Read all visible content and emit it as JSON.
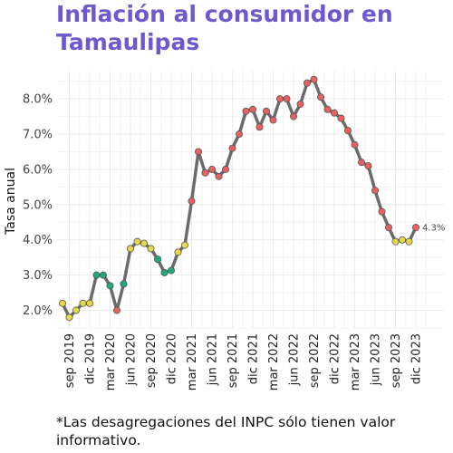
{
  "chart_data": {
    "type": "line",
    "title": "Inflación al consumidor en Tamaulipas",
    "xlabel": "",
    "ylabel": "Tasa anual",
    "ylim": [
      1.5,
      8.8
    ],
    "yticks": [
      2,
      3,
      4,
      5,
      6,
      7,
      8
    ],
    "ytick_labels": [
      "2.0%",
      "3.0%",
      "4.0%",
      "5.0%",
      "6.0%",
      "7.0%",
      "8.0%"
    ],
    "xtick_labels": [
      "sep 2019",
      "dic 2019",
      "mar 2020",
      "jun 2020",
      "sep 2020",
      "dic 2020",
      "mar 2021",
      "jun 2021",
      "sep 2021",
      "dic 2021",
      "mar 2022",
      "jun 2022",
      "sep 2022",
      "dic 2022",
      "mar 2023",
      "jun 2023",
      "sep 2023",
      "dic 2023"
    ],
    "x": [
      "ago 2019",
      "sep 2019",
      "oct 2019",
      "nov 2019",
      "dic 2019",
      "ene 2020",
      "feb 2020",
      "mar 2020",
      "abr 2020",
      "may 2020",
      "jun 2020",
      "jul 2020",
      "ago 2020",
      "sep 2020",
      "oct 2020",
      "nov 2020",
      "dic 2020",
      "ene 2021",
      "feb 2021",
      "mar 2021",
      "abr 2021",
      "may 2021",
      "jun 2021",
      "jul 2021",
      "ago 2021",
      "sep 2021",
      "oct 2021",
      "nov 2021",
      "dic 2021",
      "ene 2022",
      "feb 2022",
      "mar 2022",
      "abr 2022",
      "may 2022",
      "jun 2022",
      "jul 2022",
      "ago 2022",
      "sep 2022",
      "oct 2022",
      "nov 2022",
      "dic 2022",
      "ene 2023",
      "feb 2023",
      "mar 2023",
      "abr 2023",
      "may 2023",
      "jun 2023",
      "jul 2023",
      "ago 2023",
      "sep 2023",
      "oct 2023",
      "nov 2023",
      "dic 2023"
    ],
    "values": [
      2.2,
      1.8,
      2.0,
      2.2,
      2.2,
      3.0,
      3.0,
      2.7,
      2.0,
      2.75,
      3.75,
      3.95,
      3.9,
      3.75,
      3.45,
      3.07,
      3.13,
      3.65,
      3.85,
      5.1,
      6.5,
      5.9,
      6.0,
      5.8,
      6.0,
      6.6,
      7.0,
      7.65,
      7.7,
      7.2,
      7.65,
      7.4,
      8.0,
      8.0,
      7.5,
      7.85,
      8.45,
      8.55,
      8.05,
      7.7,
      7.6,
      7.45,
      7.1,
      6.7,
      6.2,
      6.1,
      5.4,
      4.8,
      4.35,
      3.95,
      4.0,
      3.95,
      4.35
    ],
    "point_categories": [
      "y",
      "y",
      "y",
      "y",
      "y",
      "g",
      "g",
      "g",
      "r",
      "g",
      "y",
      "y",
      "y",
      "y",
      "g",
      "g",
      "g",
      "y",
      "y",
      "r",
      "r",
      "r",
      "r",
      "r",
      "r",
      "r",
      "r",
      "r",
      "r",
      "r",
      "r",
      "r",
      "r",
      "r",
      "r",
      "r",
      "r",
      "r",
      "r",
      "r",
      "r",
      "r",
      "r",
      "r",
      "r",
      "r",
      "r",
      "r",
      "r",
      "y",
      "y",
      "y",
      "r"
    ],
    "category_colors": {
      "y": "#E5D84A",
      "g": "#1FAA78",
      "r": "#E86060"
    },
    "line_color": "#6B6B6B",
    "last_point_label": "4.3%",
    "grid": true,
    "legend": "none"
  },
  "note": "*Las desagregaciones del INPC sólo tienen valor informativo."
}
